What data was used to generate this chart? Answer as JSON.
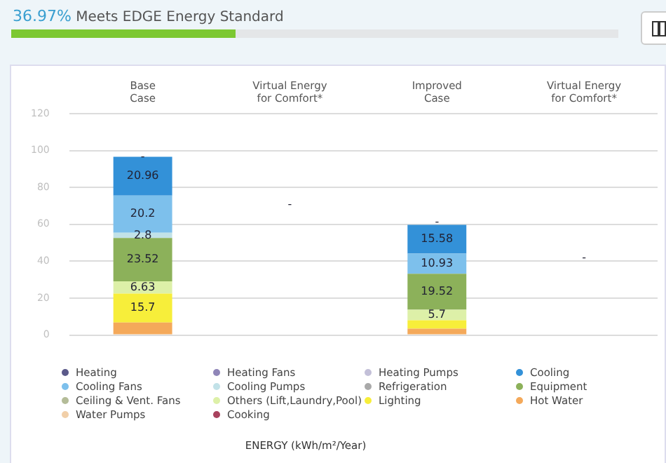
{
  "chart_data": {
    "type": "bar",
    "title": "36.97% Meets EDGE Energy Standard",
    "categories": [
      "Base\nCase",
      "Virtual Energy\nfor Comfort*",
      "Improved\nCase",
      "Virtual Energy\nfor Comfort*"
    ],
    "stacked": true,
    "ylim": [
      0,
      120
    ],
    "yticks": [
      0,
      20,
      40,
      60,
      80,
      100,
      120
    ],
    "grid": "y",
    "legend": "bottom",
    "marker": "circle",
    "series": [
      {
        "name": "Cooking",
        "color": "#a8425e",
        "values": [
          null,
          null,
          null,
          null
        ]
      },
      {
        "name": "Water Pumps",
        "color": "#f1cfa8",
        "values": [
          null,
          null,
          null,
          null
        ]
      },
      {
        "name": "Hot Water",
        "color": "#f4a95a",
        "values": [
          6.8,
          null,
          3.5,
          null
        ]
      },
      {
        "name": "Lighting",
        "color": "#f7ee3a",
        "values": [
          15.7,
          null,
          4.5,
          null
        ],
        "value_labels": [
          "15.7",
          null,
          null,
          null
        ]
      },
      {
        "name": "Others (Lift,Laundry,Pool)",
        "color": "#ddf0a8",
        "values": [
          6.63,
          null,
          5.7,
          null
        ],
        "value_labels": [
          "6.63",
          null,
          "5.7",
          null
        ]
      },
      {
        "name": "Ceiling & Vent. Fans",
        "color": "#b4bc98",
        "values": [
          null,
          null,
          null,
          null
        ]
      },
      {
        "name": "Equipment",
        "color": "#8cb15a",
        "values": [
          23.52,
          null,
          19.52,
          null
        ],
        "value_labels": [
          "23.52",
          null,
          "19.52",
          null
        ]
      },
      {
        "name": "Refrigeration",
        "color": "#a9a9a9",
        "values": [
          null,
          null,
          null,
          null
        ]
      },
      {
        "name": "Cooling Pumps",
        "color": "#c2e2e8",
        "values": [
          2.8,
          null,
          null,
          null
        ],
        "value_labels": [
          "2.8",
          null,
          null,
          null
        ]
      },
      {
        "name": "Cooling Fans",
        "color": "#7dc0ec",
        "values": [
          20.2,
          null,
          10.93,
          null
        ],
        "value_labels": [
          "20.2",
          null,
          "10.93",
          null
        ]
      },
      {
        "name": "Cooling",
        "color": "#3391d8",
        "values": [
          20.96,
          null,
          15.58,
          null
        ],
        "value_labels": [
          "20.96",
          null,
          "15.58",
          null
        ]
      },
      {
        "name": "Heating Pumps",
        "color": "#c3c0d8",
        "values": [
          null,
          null,
          null,
          null
        ]
      },
      {
        "name": "Heating Fans",
        "color": "#8f86b8",
        "values": [
          null,
          null,
          null,
          null
        ]
      },
      {
        "name": "Heating",
        "color": "#5b5a8a",
        "values": [
          null,
          null,
          null,
          null
        ]
      }
    ],
    "annotations": [
      "ENERGY (kWh/m²/Year)",
      {
        "text": "-",
        "x": "Base\nCase",
        "y": 96.6
      },
      "-",
      {
        "text": "-",
        "x": "Improved\nCase",
        "y": 61
      },
      "-"
    ]
  }
}
